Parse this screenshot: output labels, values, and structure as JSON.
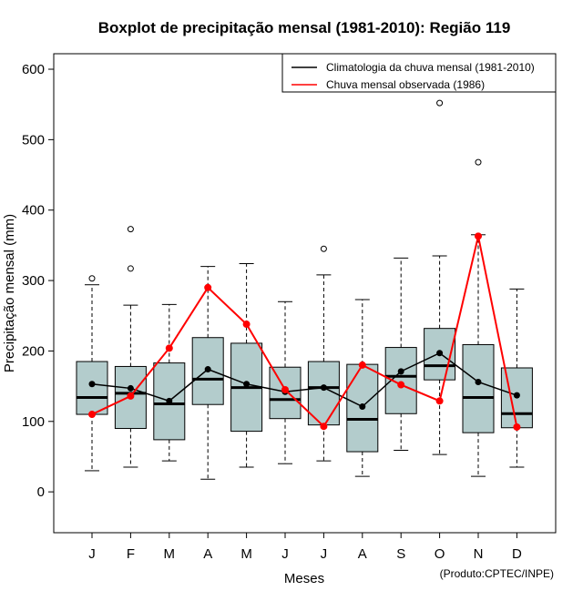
{
  "chart_data": {
    "type": "boxplot",
    "title": "Boxplot de precipitação mensal (1981-2010): Região 119",
    "xlabel": "Meses",
    "ylabel": "Precipitação mensal (mm)",
    "credit": "(Produto:CPTEC/INPE)",
    "ylim": [
      -58,
      622
    ],
    "yticks": [
      0,
      100,
      200,
      300,
      400,
      500,
      600
    ],
    "categories": [
      "J",
      "F",
      "M",
      "A",
      "M",
      "J",
      "J",
      "A",
      "S",
      "O",
      "N",
      "D"
    ],
    "boxes": [
      {
        "min": 30,
        "q1": 110,
        "median": 134,
        "q3": 185,
        "max": 294,
        "outliers": [
          303
        ]
      },
      {
        "min": 35,
        "q1": 90,
        "median": 140,
        "q3": 178,
        "max": 265,
        "outliers": [
          317,
          373
        ]
      },
      {
        "min": 44,
        "q1": 74,
        "median": 125,
        "q3": 183,
        "max": 266,
        "outliers": []
      },
      {
        "min": 18,
        "q1": 124,
        "median": 160,
        "q3": 219,
        "max": 320,
        "outliers": []
      },
      {
        "min": 35,
        "q1": 86,
        "median": 148,
        "q3": 211,
        "max": 324,
        "outliers": []
      },
      {
        "min": 40,
        "q1": 104,
        "median": 131,
        "q3": 177,
        "max": 270,
        "outliers": []
      },
      {
        "min": 44,
        "q1": 95,
        "median": 148,
        "q3": 185,
        "max": 308,
        "outliers": [
          345
        ]
      },
      {
        "min": 22,
        "q1": 57,
        "median": 103,
        "q3": 181,
        "max": 273,
        "outliers": []
      },
      {
        "min": 59,
        "q1": 111,
        "median": 164,
        "q3": 205,
        "max": 332,
        "outliers": []
      },
      {
        "min": 53,
        "q1": 159,
        "median": 179,
        "q3": 232,
        "max": 335,
        "outliers": [
          552
        ]
      },
      {
        "min": 22,
        "q1": 84,
        "median": 134,
        "q3": 209,
        "max": 365,
        "outliers": [
          468
        ]
      },
      {
        "min": 35,
        "q1": 91,
        "median": 111,
        "q3": 176,
        "max": 288,
        "outliers": []
      }
    ],
    "series": [
      {
        "name": "Climatologia da chuva mensal (1981-2010)",
        "color": "#000000",
        "values": [
          153,
          147,
          129,
          174,
          153,
          142,
          148,
          121,
          171,
          197,
          156,
          137
        ]
      },
      {
        "name": "Chuva mensal observada (1986)",
        "color": "#ff0000",
        "values": [
          110,
          136,
          204,
          290,
          238,
          145,
          93,
          180,
          152,
          129,
          363,
          92
        ]
      }
    ],
    "box_fill": "#b3cccc",
    "legend_position": "top-right"
  }
}
